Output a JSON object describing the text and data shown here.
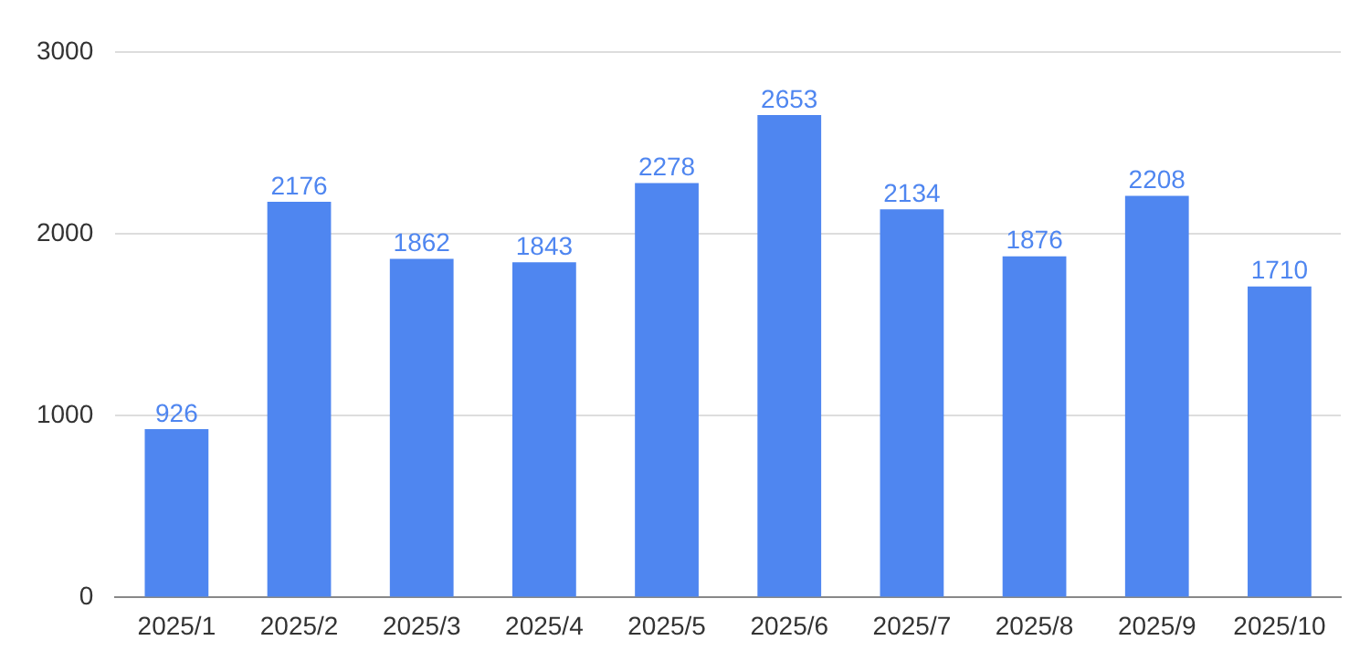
{
  "chart_data": {
    "type": "bar",
    "categories": [
      "2025/1",
      "2025/2",
      "2025/3",
      "2025/4",
      "2025/5",
      "2025/6",
      "2025/7",
      "2025/8",
      "2025/9",
      "2025/10"
    ],
    "values": [
      926,
      2176,
      1862,
      1843,
      2278,
      2653,
      2134,
      1876,
      2208,
      1710
    ],
    "color": "#4f86f0",
    "ylim": [
      0,
      3000
    ],
    "yticks": [
      0,
      1000,
      2000,
      3000
    ],
    "grid": "y",
    "data_labels": true
  }
}
